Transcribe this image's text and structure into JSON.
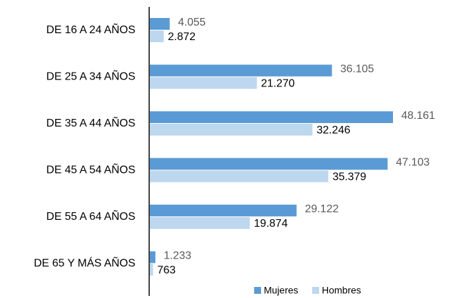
{
  "chart_data": {
    "type": "bar",
    "orientation": "horizontal",
    "categories": [
      "DE 16 A 24 AÑOS",
      "DE 25 A 34 AÑOS",
      "DE 35 A 44 AÑOS",
      "DE 45 A 54 AÑOS",
      "DE 55 A 64 AÑOS",
      "DE 65 Y MÁS AÑOS"
    ],
    "series": [
      {
        "name": "Mujeres",
        "color": "#5b9bd5",
        "values": [
          4055,
          36105,
          48161,
          47103,
          29122,
          1233
        ],
        "value_labels": [
          "4.055",
          "36.105",
          "48.161",
          "47.103",
          "29.122",
          "1.233"
        ]
      },
      {
        "name": "Hombres",
        "color": "#bdd7ee",
        "values": [
          2872,
          21270,
          32246,
          35379,
          19874,
          763
        ],
        "value_labels": [
          "2.872",
          "21.270",
          "32.246",
          "35.379",
          "19.874",
          "763"
        ]
      }
    ],
    "legend": "bottom"
  }
}
